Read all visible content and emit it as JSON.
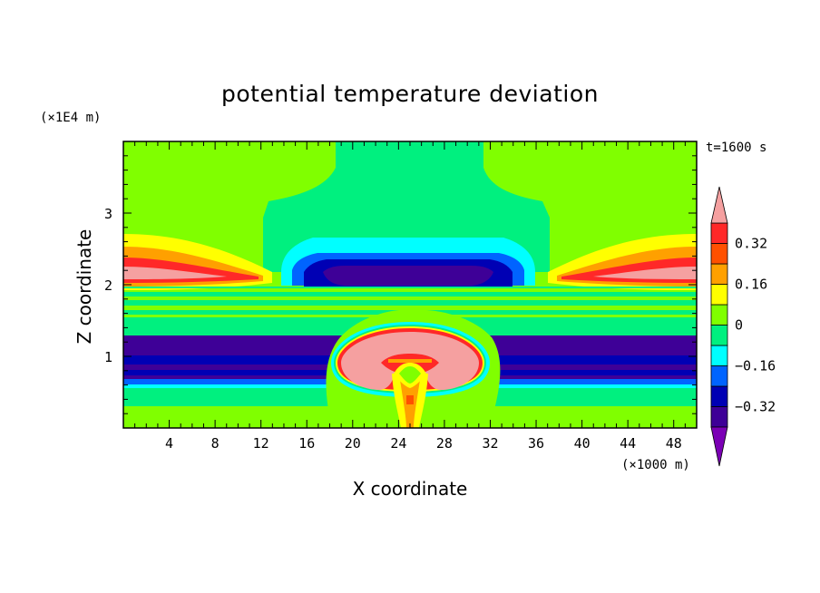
{
  "chart_data": {
    "type": "heatmap",
    "title": "potential temperature deviation",
    "xlabel": "X coordinate",
    "ylabel": "Z coordinate",
    "x_unit": "(×1000 m)",
    "y_unit": "(×1E4 m)",
    "time_label": "t=1600 s",
    "xlim": [
      0,
      50
    ],
    "ylim": [
      0,
      4
    ],
    "x_ticks": [
      4,
      8,
      12,
      16,
      20,
      24,
      28,
      32,
      36,
      40,
      44,
      48
    ],
    "y_ticks": [
      1,
      2,
      3
    ],
    "colorbar": {
      "levels": [
        -0.4,
        -0.32,
        -0.24,
        -0.16,
        -0.08,
        0,
        0.08,
        0.16,
        0.24,
        0.32,
        0.4
      ],
      "labels": [
        "0.32",
        "0.16",
        "0",
        "−0.16",
        "−0.32"
      ],
      "label_values": [
        0.32,
        0.16,
        0,
        -0.16,
        -0.32
      ],
      "colors": [
        "#7b00b5",
        "#3e0097",
        "#0000b4",
        "#0064ff",
        "#00ffff",
        "#00f07f",
        "#80ff00",
        "#ffff00",
        "#ffa000",
        "#ff5000",
        "#ff2828",
        "#f5a0a0"
      ]
    },
    "features": [
      {
        "name": "warm bubble",
        "x_center": 24.5,
        "z_center": 0.8,
        "value": 0.4
      },
      {
        "name": "cold anomaly above bubble",
        "x_center": 24.5,
        "z_center": 2.15,
        "value": -0.4
      },
      {
        "name": "warm layer left",
        "x_center": 6,
        "z_center": 2.15,
        "value": 0.4
      },
      {
        "name": "warm layer right",
        "x_center": 44,
        "z_center": 2.15,
        "value": 0.4
      },
      {
        "name": "cold band",
        "x_range": [
          0,
          50
        ],
        "z_range": [
          0.55,
          1.3
        ],
        "value": -0.36
      }
    ]
  }
}
